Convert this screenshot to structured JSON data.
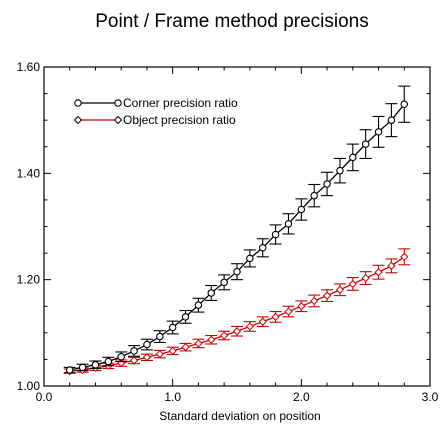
{
  "chart_data": {
    "type": "line",
    "title": "Point / Frame method precisions",
    "xlabel": "Standard deviation on position",
    "ylabel": "",
    "xlim": [
      0.0,
      3.0
    ],
    "ylim": [
      1.0,
      1.6
    ],
    "x_ticks": [
      {
        "value": 0.0,
        "label": "0.0"
      },
      {
        "value": 1.0,
        "label": "1.0"
      },
      {
        "value": 2.0,
        "label": "2.0"
      },
      {
        "value": 3.0,
        "label": "3.0"
      }
    ],
    "y_ticks": [
      {
        "value": 1.0,
        "label": "1.00"
      },
      {
        "value": 1.2,
        "label": "1.20"
      },
      {
        "value": 1.4,
        "label": "1.40"
      },
      {
        "value": 1.6,
        "label": "1.60"
      }
    ],
    "grid": false,
    "legend_position": "top-left",
    "x": [
      0.2,
      0.3,
      0.4,
      0.5,
      0.6,
      0.7,
      0.8,
      0.9,
      1.0,
      1.1,
      1.2,
      1.3,
      1.4,
      1.5,
      1.6,
      1.7,
      1.8,
      1.9,
      2.0,
      2.1,
      2.2,
      2.3,
      2.4,
      2.5,
      2.6,
      2.7,
      2.8
    ],
    "series": [
      {
        "name": "Corner precision ratio",
        "color": "#000000",
        "marker": "circle",
        "values": [
          1.03,
          1.035,
          1.04,
          1.046,
          1.055,
          1.066,
          1.078,
          1.093,
          1.11,
          1.13,
          1.152,
          1.175,
          1.195,
          1.215,
          1.24,
          1.26,
          1.285,
          1.305,
          1.332,
          1.358,
          1.38,
          1.405,
          1.43,
          1.455,
          1.478,
          1.5,
          1.53
        ],
        "errors": [
          0.005,
          0.006,
          0.007,
          0.008,
          0.009,
          0.01,
          0.01,
          0.011,
          0.012,
          0.012,
          0.013,
          0.014,
          0.014,
          0.015,
          0.016,
          0.017,
          0.018,
          0.019,
          0.02,
          0.021,
          0.022,
          0.023,
          0.025,
          0.027,
          0.029,
          0.031,
          0.034
        ]
      },
      {
        "name": "Object precision ratio",
        "color": "#cc0000",
        "marker": "diamond",
        "values": [
          1.028,
          1.03,
          1.034,
          1.038,
          1.043,
          1.048,
          1.054,
          1.06,
          1.066,
          1.073,
          1.08,
          1.087,
          1.095,
          1.103,
          1.112,
          1.121,
          1.13,
          1.14,
          1.15,
          1.16,
          1.17,
          1.181,
          1.192,
          1.203,
          1.214,
          1.226,
          1.243
        ],
        "errors": [
          0.004,
          0.004,
          0.005,
          0.005,
          0.006,
          0.006,
          0.006,
          0.007,
          0.007,
          0.007,
          0.008,
          0.008,
          0.008,
          0.009,
          0.009,
          0.009,
          0.01,
          0.01,
          0.01,
          0.011,
          0.011,
          0.011,
          0.012,
          0.012,
          0.013,
          0.013,
          0.015
        ]
      }
    ]
  }
}
